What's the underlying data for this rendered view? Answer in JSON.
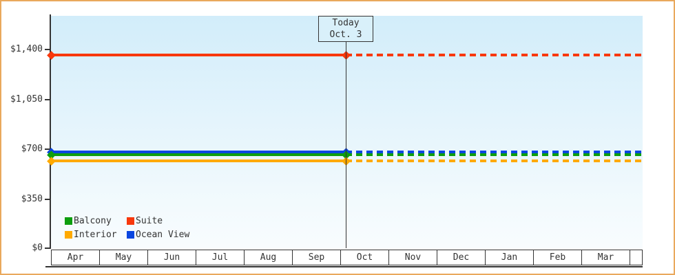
{
  "chart_data": {
    "type": "line",
    "title": "",
    "xlabel": "",
    "ylabel": "",
    "categories": [
      "Apr",
      "May",
      "Jun",
      "Jul",
      "Aug",
      "Sep",
      "Oct",
      "Nov",
      "Dec",
      "Jan",
      "Feb",
      "Mar"
    ],
    "series": [
      {
        "name": "Suite",
        "color": "#f8380c",
        "values": [
          1365,
          1365,
          1365,
          1365,
          1365,
          1365,
          1365,
          1365,
          1365,
          1365,
          1365,
          1365
        ]
      },
      {
        "name": "Ocean View",
        "color": "#0a46e0",
        "values": [
          680,
          680,
          680,
          680,
          680,
          680,
          680,
          680,
          680,
          680,
          680,
          680
        ]
      },
      {
        "name": "Balcony",
        "color": "#0d9e0e",
        "values": [
          660,
          660,
          660,
          660,
          660,
          660,
          660,
          660,
          660,
          660,
          660,
          660
        ]
      },
      {
        "name": "Interior",
        "color": "#ffaa00",
        "values": [
          620,
          620,
          620,
          620,
          620,
          620,
          620,
          620,
          620,
          620,
          620,
          620
        ]
      }
    ],
    "y_ticks": [
      "$1,400",
      "$1,050",
      "$700",
      "$350",
      "$0"
    ],
    "ylim": [
      0,
      1640
    ],
    "grid": false,
    "legend_position": "inside-bottom-left",
    "line_style_note": "solid before today marker (Oct. 3), dashed after"
  },
  "today_marker": {
    "line1": "Today",
    "line2": "Oct. 3"
  },
  "legend": {
    "items": [
      {
        "label": "Balcony",
        "color": "#0d9e0e"
      },
      {
        "label": "Suite",
        "color": "#f8380c"
      },
      {
        "label": "Interior",
        "color": "#ffaa00"
      },
      {
        "label": "Ocean View",
        "color": "#0a46e0"
      }
    ]
  },
  "colors": {
    "frame_border": "#e9a85c",
    "axis": "#333333",
    "plot_top": "#d2edfa",
    "plot_bottom": "#f8fcfe",
    "today_box_bg": "#d9f0fa"
  }
}
